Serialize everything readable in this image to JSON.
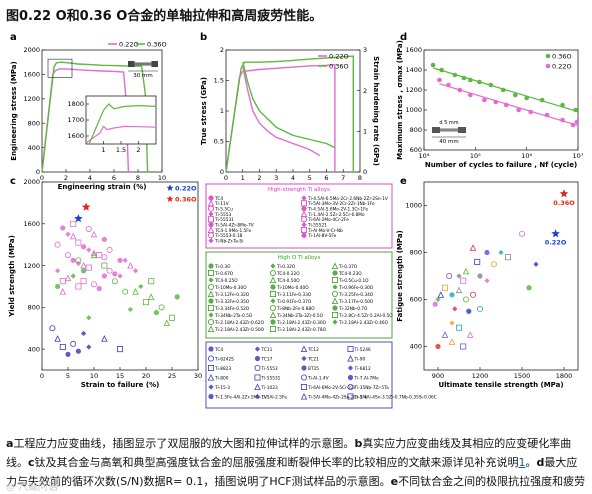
{
  "page_title": "图0.22 O和0.36 O合金的单轴拉伸和高周疲劳性能。",
  "caption": {
    "a_label": "a",
    "a_text": "工程应力应变曲线，插图显示了双屈服的放大图和拉伸试样的示意图。",
    "b_label": "b",
    "b_text": "真实应力应变曲线及其相应的应变硬化率曲线。",
    "c_label": "c",
    "c_text": "钛及其合金与高氧和典型高强度钛合金的屈服强度和断裂伸长率的比较相应的文献来源详见补充说明",
    "ref1": "1",
    "c_end": "。",
    "d_label": "d",
    "d_text": "最大应力与失效前的循环次数(S/N)数据R= 0.1，插图说明了HCF测试样品的示意图。",
    "e_label": "e",
    "e_text": "不同钛合金之间的极限抗拉强度和疲劳强度的比较，补充说明中提供了相应的文献来源",
    "ref2": "2",
    "e_end": "。"
  },
  "watermark": "◎ 六威问语",
  "colors": {
    "o022": "#e36ad2",
    "o036": "#5cb83f",
    "star_blue": "#1c3fd6",
    "star_red": "#e0271d",
    "legend_pink": "#d838c8",
    "legend_green": "#3f9d2a",
    "legend_blue": "#3b3fb8"
  },
  "chart_data": [
    {
      "panel": "a",
      "type": "line",
      "xlabel": "Engineering strain (%)",
      "ylabel": "Engineering stress (MPa)",
      "xlim": [
        0,
        10
      ],
      "ylim": [
        0,
        2000
      ],
      "xticks": [
        0,
        2,
        4,
        6,
        8,
        10
      ],
      "yticks": [
        0,
        400,
        800,
        1200,
        1600,
        2000
      ],
      "legend": [
        "0.22O",
        "0.36O"
      ],
      "scale_label": "30 mm",
      "series": [
        {
          "name": "0.22O",
          "x": [
            0,
            0.9,
            1.1,
            1.5,
            2,
            3,
            4,
            5,
            6,
            6.8,
            7,
            7.2
          ],
          "y": [
            0,
            1600,
            1660,
            1690,
            1690,
            1675,
            1665,
            1655,
            1650,
            1640,
            1200,
            0
          ]
        },
        {
          "name": "0.36O",
          "x": [
            0,
            1.0,
            1.2,
            1.6,
            2.2,
            3,
            4,
            5,
            6,
            7,
            8.3,
            8.6,
            8.8
          ],
          "y": [
            0,
            1720,
            1790,
            1800,
            1790,
            1770,
            1760,
            1750,
            1745,
            1740,
            1735,
            1300,
            0
          ]
        }
      ],
      "inset": {
        "xlim": [
          0.5,
          2.5
        ],
        "ylim": [
          1550,
          1850
        ],
        "xticks": [
          1.0,
          1.5,
          2.0
        ],
        "yticks": [
          1600,
          1700,
          1800
        ],
        "series": [
          {
            "name": "0.22O",
            "x": [
              0.5,
              0.9,
              1.0,
              1.1,
              1.3,
              1.6,
              2.0,
              2.5
            ],
            "y": [
              1555,
              1620,
              1660,
              1640,
              1650,
              1660,
              1658,
              1655
            ]
          },
          {
            "name": "0.36O",
            "x": [
              0.6,
              1.0,
              1.15,
              1.3,
              1.6,
              2.0,
              2.5
            ],
            "y": [
              1555,
              1760,
              1800,
              1770,
              1785,
              1790,
              1785
            ]
          }
        ]
      }
    },
    {
      "panel": "b",
      "type": "line",
      "xlabel": "True strain (%)",
      "ylabel": "True stress (GPa)",
      "y2label": "Strain hardening rate (GPa)",
      "xlim": [
        0,
        8
      ],
      "ylim": [
        0,
        2.0
      ],
      "y2lim": [
        0,
        3
      ],
      "xticks": [
        0,
        1,
        2,
        3,
        4,
        5,
        6,
        7,
        8
      ],
      "yticks": [
        0,
        0.5,
        1.0,
        1.5,
        2.0
      ],
      "y2ticks": [
        0,
        1,
        2,
        3
      ],
      "legend": [
        "0.22O",
        "0.36O"
      ],
      "series": [
        {
          "name": "0.22O",
          "x": [
            0,
            0.8,
            1.0,
            2,
            3,
            4,
            5,
            6,
            6.5,
            6.5
          ],
          "y": [
            0,
            1.55,
            1.65,
            1.68,
            1.7,
            1.72,
            1.74,
            1.75,
            1.76,
            0
          ]
        },
        {
          "name": "0.36O",
          "x": [
            0,
            0.9,
            1.1,
            2,
            3,
            4,
            5,
            6,
            7,
            7.6,
            7.6
          ],
          "y": [
            0,
            1.7,
            1.8,
            1.8,
            1.81,
            1.83,
            1.85,
            1.87,
            1.89,
            1.9,
            0
          ]
        },
        {
          "name": "0.22O hardening",
          "x": [
            1.0,
            1.3,
            1.6,
            2.0,
            2.5,
            3.0,
            4.0,
            5.0,
            5.6
          ],
          "y": [
            2.6,
            2.0,
            1.5,
            1.2,
            1.0,
            0.85,
            0.7,
            0.55,
            0.4
          ]
        },
        {
          "name": "0.36O hardening",
          "x": [
            1.0,
            1.3,
            1.6,
            2.0,
            3.0,
            4.0,
            5.0,
            6.0,
            6.5
          ],
          "y": [
            2.7,
            2.2,
            1.8,
            1.5,
            1.1,
            0.9,
            0.8,
            0.7,
            0.6
          ]
        }
      ]
    },
    {
      "panel": "c",
      "type": "scatter",
      "xlabel": "Strain to failure (%)",
      "ylabel": "Yield strength (MPa)",
      "xlim": [
        0,
        30
      ],
      "ylim": [
        200,
        2000
      ],
      "xticks": [
        0,
        5,
        10,
        15,
        20,
        25,
        30
      ],
      "yticks": [
        400,
        800,
        1200,
        1600,
        2000
      ],
      "highlight": [
        {
          "name": "0.22O",
          "x": 7,
          "y": 1650,
          "color": "#1c3fd6"
        },
        {
          "name": "0.36O",
          "x": 8.5,
          "y": 1760,
          "color": "#e0271d"
        }
      ],
      "groups": [
        {
          "name": "High-strength Ti alloys",
          "color": "#e36ad2",
          "points": [
            [
              4,
              1560
            ],
            [
              5,
              1500
            ],
            [
              6,
              1480
            ],
            [
              7,
              1420
            ],
            [
              3,
              1400
            ],
            [
              8,
              1380
            ],
            [
              9,
              1350
            ],
            [
              10,
              1320
            ],
            [
              11,
              1300
            ],
            [
              12,
              1280
            ],
            [
              6,
              1250
            ],
            [
              7,
              1220
            ],
            [
              8,
              1200
            ],
            [
              9,
              1180
            ],
            [
              13,
              1150
            ],
            [
              14,
              1120
            ],
            [
              15,
              1100
            ],
            [
              5,
              1080
            ],
            [
              4,
              1050
            ],
            [
              10,
              1020
            ],
            [
              11,
              980
            ],
            [
              16,
              1250
            ],
            [
              17,
              1200
            ],
            [
              6,
              1600
            ],
            [
              9,
              1550
            ],
            [
              12,
              1450
            ],
            [
              3,
              1150
            ],
            [
              4,
              950
            ],
            [
              8,
              1050
            ],
            [
              13,
              1350
            ],
            [
              15,
              1250
            ],
            [
              18,
              1150
            ],
            [
              10,
              1500
            ],
            [
              7,
              1000
            ],
            [
              5,
              1300
            ],
            [
              12,
              1100
            ]
          ]
        },
        {
          "name": "High O Ti alloys",
          "color": "#5cb83f",
          "points": [
            [
              19,
              1000
            ],
            [
              21,
              900
            ],
            [
              20,
              850
            ],
            [
              23,
              800
            ],
            [
              22,
              750
            ],
            [
              17,
              780
            ],
            [
              18,
              950
            ],
            [
              25,
              700
            ],
            [
              7,
              1250
            ],
            [
              8,
              1150
            ],
            [
              6,
              1100
            ],
            [
              10,
              1300
            ],
            [
              12,
              1200
            ],
            [
              14,
              1050
            ],
            [
              3,
              1000
            ],
            [
              9,
              700
            ],
            [
              24,
              650
            ],
            [
              21,
              1050
            ],
            [
              16,
              950
            ],
            [
              26,
              900
            ]
          ]
        },
        {
          "name": "Pure Ti and Ti alloys",
          "color": "#3b3fb8",
          "points": [
            [
              3,
              500
            ],
            [
              4,
              420
            ],
            [
              6,
              450
            ],
            [
              7,
              380
            ],
            [
              9,
              420
            ],
            [
              12,
              500
            ],
            [
              15,
              400
            ],
            [
              2,
              600
            ],
            [
              5,
              350
            ],
            [
              8,
              550
            ]
          ]
        }
      ],
      "legend_box_1": {
        "title": "High-strength Ti alloys",
        "items": [
          "TC4",
          "Ti-4.5Al-6.5Mo-2Cr-2.6Nb-2Zr-2Sn-1V",
          "Ti-11V",
          "Ti-5Al-3Mo-3V-2Cr-2Zr-1Nb-1Fe",
          "Ti-5.5Cu",
          "Ti-4.5Al-5.6Mo-2V-1.3Cr-1Fe",
          "Ti-5553",
          "Ti-1.4Al-2.5Zr-2.5Cr-6.8Mo",
          "Ti-55531",
          "Ti-6Al-2Mo-4Cr-2Fe",
          "Ti-5Al-4Zr-8Mo-7V",
          "Ti-55521",
          "TC4-1.9Mo-1.5Fe",
          "Ti-Al-Mo-V-Cr-Nb",
          "Ti-5553-0.1B",
          "Ti-1Al-8V-5Fe",
          "Ti-Nb-Zr-Ta-Si"
        ]
      },
      "legend_box_2": {
        "title": "High O Ti alloys",
        "items": [
          "Ti-0.3O",
          "Ti-0.32O",
          "Ti-0.37O",
          "Ti-0.67O",
          "TC4-0.22O",
          "TC4-0.23O",
          "TC4-0.25O",
          "TC4-0.50O",
          "Ti-0.5Cu-0.1O",
          "Ti-10Mo-0.30O",
          "Ti-10Mo-0.40O",
          "Ti-0.96Fe-0.30O",
          "Ti-3.12Fe-0.32O",
          "Ti-3.11Fe-0.33O",
          "Ti-3.25Fe-0.34O",
          "Ti-3.32Fe-0.35O",
          "Ti-0.91Fe-0.37O",
          "Ti-3.17Fe-0.50O",
          "Ti-3.34Fe-0.52O",
          "Ti-8Nb-2Fe-0.88O",
          "Ti-32Nb-0.7O",
          "Ti-34Nb-2Ta-0.5O",
          "Ti-34Nb-2Ta-3Zr-0.5O",
          "Ti-2.8Cr-4.5Zr-5.2Al-0.5O",
          "Ti-2.18Al-2.43Zr-0.62O",
          "Ti-2.18Al-2.43Zr-0.30O",
          "Ti-2.18Al-2.43Zr-0.46O",
          "Ti-2.18Al-2.43Zr-0.50O",
          "Ti-2.18Al-2.43Zr-0.78O"
        ]
      },
      "legend_box_3": {
        "items": [
          "TC4",
          "TC11",
          "TC12",
          "Ti-5246",
          "Ti-6242S",
          "TC17",
          "TC21",
          "Ti-90",
          "Ti-8823",
          "Ti-5553",
          "BT25",
          "Ti-6812",
          "Ti-800",
          "Ti-55531",
          "Ti-Al-1.4V",
          "Ti-7.Al-7Mo",
          "Ti-15-3",
          "Ti-1023",
          "Ti-6Al-6Mo-2V-5Cr-2Zr",
          "Ti-35Nb-7Zr-5Ta",
          "Ti-1.5Fe-4Al-2Zr-1Mo-1V",
          "Ti-5Al-2.5Fe",
          "Ti-5Al-4Mo-4Zr-2Sn-2Cr-1Fe",
          "Ti-5.4Al-4Sn-3.5Zr-0.7Nb-0.35Si-0.06C"
        ]
      }
    },
    {
      "panel": "d",
      "type": "scatter",
      "xlabel": "Number of cycles to failure , Nf (cycle)",
      "ylabel": "Maximum stress , σmax (MPa)",
      "xscale": "log",
      "xlim": [
        10000,
        10000000
      ],
      "ylim": [
        600,
        1600
      ],
      "xticks": [
        10000,
        100000,
        1000000,
        10000000
      ],
      "xtick_labels": [
        "10⁴",
        "10⁵",
        "10⁶",
        "10⁷"
      ],
      "yticks": [
        600,
        800,
        1000,
        1200,
        1400,
        1600
      ],
      "legend": [
        "0.36O",
        "0.22O"
      ],
      "scale_label": "40 mm",
      "dim_label": "d 5 mm",
      "series": [
        {
          "name": "0.36O",
          "x": [
            15000,
            22000,
            40000,
            60000,
            80000,
            120000,
            200000,
            350000,
            600000,
            1000000,
            2000000,
            5000000,
            9000000
          ],
          "y": [
            1450,
            1400,
            1350,
            1320,
            1300,
            1280,
            1250,
            1200,
            1150,
            1120,
            1100,
            1050,
            1000
          ]
        },
        {
          "name": "0.22O",
          "x": [
            20000,
            30000,
            50000,
            80000,
            150000,
            250000,
            400000,
            700000,
            1200000,
            2500000,
            5000000,
            8000000,
            9500000
          ],
          "y": [
            1300,
            1250,
            1200,
            1150,
            1100,
            1080,
            1050,
            1000,
            980,
            950,
            900,
            850,
            880
          ]
        }
      ]
    },
    {
      "panel": "e",
      "type": "scatter",
      "xlabel": "Ultimate tensile strength (MPa)",
      "ylabel": "Fatigue strength (MPa)",
      "xlim": [
        800,
        1900
      ],
      "ylim": [
        300,
        1100
      ],
      "xticks": [
        900,
        1200,
        1500,
        1800
      ],
      "yticks": [
        400,
        600,
        800,
        1000
      ],
      "highlight": [
        {
          "name": "0.22O",
          "x": 1740,
          "y": 880,
          "color": "#1c3fd6"
        },
        {
          "name": "0.36O",
          "x": 1800,
          "y": 1050,
          "color": "#e0271d"
        }
      ],
      "points": [
        [
          880,
          580
        ],
        [
          900,
          600
        ],
        [
          920,
          620
        ],
        [
          950,
          650
        ],
        [
          980,
          700
        ],
        [
          1000,
          620
        ],
        [
          1020,
          560
        ],
        [
          1050,
          640
        ],
        [
          1080,
          680
        ],
        [
          1100,
          600
        ],
        [
          1120,
          550
        ],
        [
          1000,
          500
        ],
        [
          950,
          450
        ],
        [
          1050,
          480
        ],
        [
          1150,
          620
        ],
        [
          1200,
          700
        ],
        [
          1250,
          680
        ],
        [
          1100,
          720
        ],
        [
          1180,
          760
        ],
        [
          1300,
          750
        ],
        [
          1250,
          800
        ],
        [
          1350,
          800
        ],
        [
          1150,
          820
        ],
        [
          1400,
          780
        ],
        [
          1500,
          880
        ],
        [
          1550,
          650
        ],
        [
          1600,
          750
        ],
        [
          1000,
          420
        ],
        [
          1080,
          400
        ],
        [
          1200,
          560
        ],
        [
          900,
          400
        ],
        [
          1050,
          700
        ],
        [
          1130,
          450
        ]
      ]
    }
  ],
  "legend_titles": {
    "box1": "High-strength Ti alloys",
    "box2": "High O Ti alloys"
  }
}
